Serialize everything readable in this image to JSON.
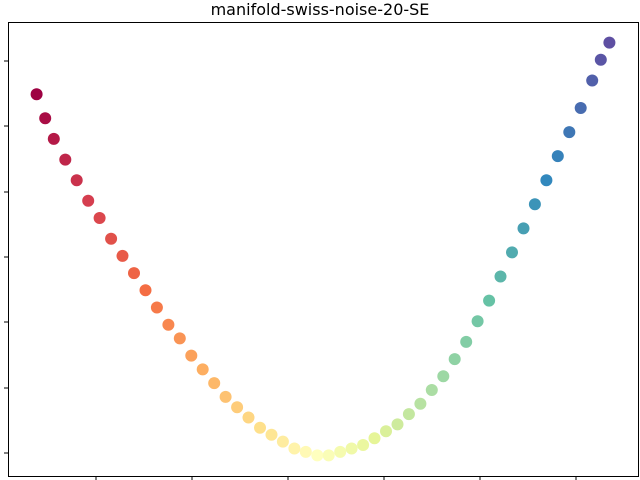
{
  "chart_data": {
    "type": "scatter",
    "title": "manifold-swiss-noise-20-SE",
    "xlabel": "",
    "ylabel": "",
    "x_tick_labels": [],
    "y_tick_labels": [],
    "xlim": [
      -1.1,
      1.1
    ],
    "ylim": [
      -0.06,
      1.26
    ],
    "grid": false,
    "colormap": "Spectral",
    "colormap_stops": [
      "#9e0142",
      "#d53e4f",
      "#f46d43",
      "#fdae61",
      "#fee08b",
      "#ffffbf",
      "#e6f598",
      "#abdda4",
      "#66c2a5",
      "#3288bd",
      "#5e4fa2"
    ],
    "series": [
      {
        "x": [
          -1.0,
          -0.97,
          -0.94,
          -0.9,
          -0.86,
          -0.82,
          -0.78,
          -0.74,
          -0.7,
          -0.66,
          -0.62,
          -0.58,
          -0.54,
          -0.5,
          -0.46,
          -0.42,
          -0.38,
          -0.34,
          -0.3,
          -0.26,
          -0.22,
          -0.18,
          -0.14,
          -0.1,
          -0.06,
          -0.02,
          0.02,
          0.06,
          0.1,
          0.14,
          0.18,
          0.22,
          0.26,
          0.3,
          0.34,
          0.38,
          0.42,
          0.46,
          0.5,
          0.54,
          0.58,
          0.62,
          0.66,
          0.7,
          0.74,
          0.78,
          0.82,
          0.86,
          0.9,
          0.94,
          0.97,
          1.0
        ],
        "y": [
          1.05,
          0.98,
          0.92,
          0.86,
          0.8,
          0.74,
          0.69,
          0.63,
          0.58,
          0.53,
          0.48,
          0.43,
          0.38,
          0.34,
          0.29,
          0.25,
          0.21,
          0.17,
          0.14,
          0.11,
          0.08,
          0.06,
          0.04,
          0.02,
          0.01,
          0.0,
          0.0,
          0.01,
          0.02,
          0.03,
          0.05,
          0.07,
          0.09,
          0.12,
          0.15,
          0.19,
          0.23,
          0.28,
          0.33,
          0.39,
          0.45,
          0.52,
          0.59,
          0.66,
          0.73,
          0.8,
          0.87,
          0.94,
          1.01,
          1.09,
          1.15,
          1.2
        ],
        "color_values": [
          0.0,
          0.02,
          0.04,
          0.06,
          0.08,
          0.1,
          0.12,
          0.14,
          0.16,
          0.18,
          0.2,
          0.22,
          0.24,
          0.26,
          0.28,
          0.3,
          0.32,
          0.34,
          0.36,
          0.38,
          0.4,
          0.42,
          0.44,
          0.46,
          0.48,
          0.5,
          0.52,
          0.54,
          0.56,
          0.58,
          0.6,
          0.62,
          0.64,
          0.66,
          0.68,
          0.7,
          0.72,
          0.74,
          0.76,
          0.78,
          0.8,
          0.82,
          0.84,
          0.86,
          0.88,
          0.9,
          0.91,
          0.93,
          0.95,
          0.97,
          0.99,
          1.0
        ]
      }
    ]
  }
}
